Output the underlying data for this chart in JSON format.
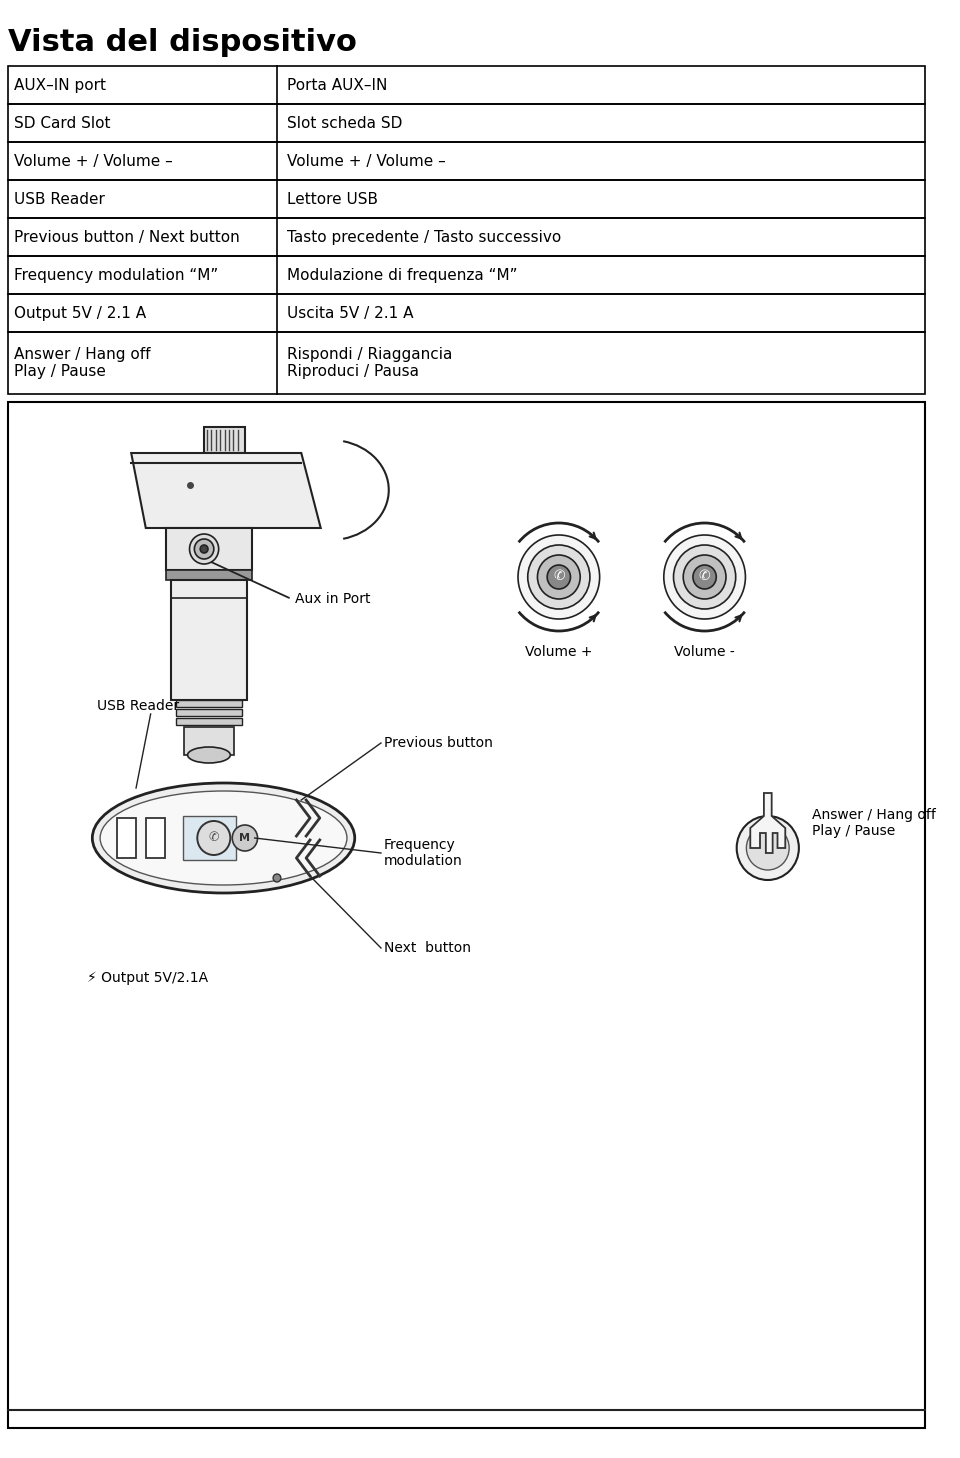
{
  "title": "Vista del dispositivo",
  "table_rows": [
    [
      "AUX–IN port",
      "Porta AUX–IN"
    ],
    [
      "SD Card Slot",
      "Slot scheda SD"
    ],
    [
      "Volume + / Volume –",
      "Volume + / Volume –"
    ],
    [
      "USB Reader",
      "Lettore USB"
    ],
    [
      "Previous button / Next button",
      "Tasto precedente / Tasto successivo"
    ],
    [
      "Frequency modulation “M”",
      "Modulazione di frequenza “M”"
    ],
    [
      "Output 5V / 2.1 A",
      "Uscita 5V / 2.1 A"
    ],
    [
      "Answer / Hang off\nPlay / Pause",
      "Rispondi / Riaggancia\nRiproduci / Pausa"
    ]
  ],
  "label_aux_in": "Aux in Port",
  "label_volume_plus": "Volume +",
  "label_volume_minus": "Volume -",
  "label_usb_reader": "USB Reader",
  "label_previous": "Previous button",
  "label_frequency": "Frequency\nmodulation",
  "label_next": "Next  button",
  "label_output": "⚡ Output 5V/2.1A",
  "label_answer": "Answer / Hang off\nPlay / Pause",
  "bg_color": "#ffffff",
  "border_color": "#000000",
  "text_color": "#000000"
}
